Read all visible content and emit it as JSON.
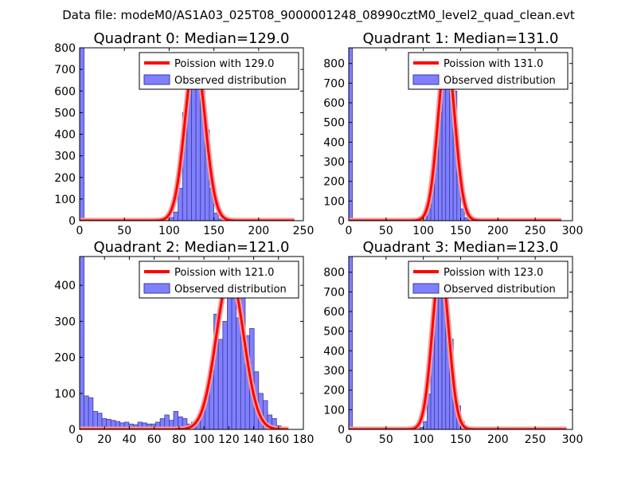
{
  "figure": {
    "suptitle": "Data file: modeM0/AS1A03_025T08_9000001248_08990cztM0_level2_quad_clean.evt"
  },
  "colors": {
    "bar_fill": "#8080ff",
    "bar_edge": "#3a3aa0",
    "curve": "#ff0000",
    "curve_glow": "#f2a0a0"
  },
  "chart_data": [
    {
      "type": "bar",
      "title": "Quadrant 0: Median=129.0",
      "xlim": [
        0,
        250
      ],
      "ylim": [
        0,
        800
      ],
      "xticks": [
        0,
        50,
        100,
        150,
        200,
        250
      ],
      "yticks": [
        0,
        100,
        200,
        300,
        400,
        500,
        600,
        700,
        800
      ],
      "bin_width": 5,
      "bins": [
        {
          "x": 0,
          "value": 800
        },
        {
          "x": 75,
          "value": 5
        },
        {
          "x": 80,
          "value": 5
        },
        {
          "x": 85,
          "value": 5
        },
        {
          "x": 90,
          "value": 8
        },
        {
          "x": 95,
          "value": 8
        },
        {
          "x": 100,
          "value": 15
        },
        {
          "x": 105,
          "value": 40
        },
        {
          "x": 110,
          "value": 150
        },
        {
          "x": 115,
          "value": 500
        },
        {
          "x": 120,
          "value": 620
        },
        {
          "x": 125,
          "value": 740
        },
        {
          "x": 130,
          "value": 690
        },
        {
          "x": 135,
          "value": 600
        },
        {
          "x": 140,
          "value": 420
        },
        {
          "x": 145,
          "value": 150
        },
        {
          "x": 150,
          "value": 35
        },
        {
          "x": 155,
          "value": 8
        }
      ],
      "curve": {
        "mean": 129.0,
        "peak": 760,
        "x_range": [
          0,
          240
        ],
        "label": "Poission with 129.0"
      },
      "hist_label": "Observed distribution"
    },
    {
      "type": "bar",
      "title": "Quadrant 1: Median=131.0",
      "xlim": [
        0,
        300
      ],
      "ylim": [
        0,
        880
      ],
      "xticks": [
        0,
        50,
        100,
        150,
        200,
        250,
        300
      ],
      "yticks": [
        0,
        100,
        200,
        300,
        400,
        500,
        600,
        700,
        800
      ],
      "bin_width": 5,
      "bins": [
        {
          "x": 0,
          "value": 880
        },
        {
          "x": 80,
          "value": 5
        },
        {
          "x": 85,
          "value": 5
        },
        {
          "x": 90,
          "value": 5
        },
        {
          "x": 95,
          "value": 10
        },
        {
          "x": 100,
          "value": 20
        },
        {
          "x": 105,
          "value": 60
        },
        {
          "x": 110,
          "value": 200
        },
        {
          "x": 115,
          "value": 440
        },
        {
          "x": 120,
          "value": 550
        },
        {
          "x": 125,
          "value": 830
        },
        {
          "x": 130,
          "value": 820
        },
        {
          "x": 135,
          "value": 680
        },
        {
          "x": 140,
          "value": 660
        },
        {
          "x": 145,
          "value": 250
        },
        {
          "x": 150,
          "value": 60
        },
        {
          "x": 155,
          "value": 15
        },
        {
          "x": 160,
          "value": 5
        }
      ],
      "curve": {
        "mean": 131.0,
        "peak": 845,
        "x_range": [
          0,
          285
        ],
        "label": "Poission with 131.0"
      },
      "hist_label": "Observed distribution"
    },
    {
      "type": "bar",
      "title": "Quadrant 2: Median=121.0",
      "xlim": [
        0,
        180
      ],
      "ylim": [
        0,
        480
      ],
      "xticks": [
        0,
        20,
        40,
        60,
        80,
        100,
        120,
        140,
        160,
        180
      ],
      "yticks": [
        0,
        100,
        200,
        300,
        400
      ],
      "bin_width": 3.6,
      "bins": [
        {
          "x": 0,
          "value": 480
        },
        {
          "x": 3.6,
          "value": 93
        },
        {
          "x": 7.2,
          "value": 88
        },
        {
          "x": 10.8,
          "value": 50
        },
        {
          "x": 14.4,
          "value": 45
        },
        {
          "x": 18,
          "value": 30
        },
        {
          "x": 21.6,
          "value": 28
        },
        {
          "x": 25.2,
          "value": 25
        },
        {
          "x": 28.8,
          "value": 22
        },
        {
          "x": 32.4,
          "value": 18
        },
        {
          "x": 36,
          "value": 20
        },
        {
          "x": 39.6,
          "value": 15
        },
        {
          "x": 43.2,
          "value": 13
        },
        {
          "x": 46.8,
          "value": 20
        },
        {
          "x": 50.4,
          "value": 18
        },
        {
          "x": 54,
          "value": 15
        },
        {
          "x": 57.6,
          "value": 15
        },
        {
          "x": 61.2,
          "value": 20
        },
        {
          "x": 64.8,
          "value": 30
        },
        {
          "x": 68.4,
          "value": 40
        },
        {
          "x": 72,
          "value": 25
        },
        {
          "x": 75.6,
          "value": 50
        },
        {
          "x": 79.2,
          "value": 35
        },
        {
          "x": 82.8,
          "value": 30
        },
        {
          "x": 86.4,
          "value": 15
        },
        {
          "x": 90,
          "value": 20
        },
        {
          "x": 93.6,
          "value": 25
        },
        {
          "x": 97.2,
          "value": 50
        },
        {
          "x": 100.8,
          "value": 100
        },
        {
          "x": 104.4,
          "value": 150
        },
        {
          "x": 108,
          "value": 320
        },
        {
          "x": 111.6,
          "value": 250
        },
        {
          "x": 115.2,
          "value": 300
        },
        {
          "x": 118.8,
          "value": 420
        },
        {
          "x": 122.4,
          "value": 390
        },
        {
          "x": 126,
          "value": 310
        },
        {
          "x": 129.6,
          "value": 370
        },
        {
          "x": 133.2,
          "value": 260
        },
        {
          "x": 136.8,
          "value": 280
        },
        {
          "x": 140.4,
          "value": 160
        },
        {
          "x": 144,
          "value": 100
        },
        {
          "x": 147.6,
          "value": 80
        },
        {
          "x": 151.2,
          "value": 40
        },
        {
          "x": 154.8,
          "value": 30
        },
        {
          "x": 158.4,
          "value": 10
        },
        {
          "x": 162,
          "value": 5
        }
      ],
      "curve": {
        "mean": 121.0,
        "peak": 430,
        "x_range": [
          0,
          168
        ],
        "label": "Poission with 121.0"
      },
      "hist_label": "Observed distribution"
    },
    {
      "type": "bar",
      "title": "Quadrant 3: Median=123.0",
      "xlim": [
        0,
        300
      ],
      "ylim": [
        0,
        880
      ],
      "xticks": [
        0,
        50,
        100,
        150,
        200,
        250,
        300
      ],
      "yticks": [
        0,
        100,
        200,
        300,
        400,
        500,
        600,
        700,
        800
      ],
      "bin_width": 5,
      "bins": [
        {
          "x": 0,
          "value": 880
        },
        {
          "x": 85,
          "value": 5
        },
        {
          "x": 90,
          "value": 5
        },
        {
          "x": 95,
          "value": 10
        },
        {
          "x": 100,
          "value": 40
        },
        {
          "x": 105,
          "value": 180
        },
        {
          "x": 110,
          "value": 450
        },
        {
          "x": 115,
          "value": 760
        },
        {
          "x": 120,
          "value": 820
        },
        {
          "x": 125,
          "value": 750
        },
        {
          "x": 130,
          "value": 500
        },
        {
          "x": 135,
          "value": 460
        },
        {
          "x": 140,
          "value": 200
        },
        {
          "x": 145,
          "value": 120
        },
        {
          "x": 150,
          "value": 40
        },
        {
          "x": 155,
          "value": 10
        },
        {
          "x": 160,
          "value": 5
        }
      ],
      "curve": {
        "mean": 123.0,
        "peak": 830,
        "x_range": [
          0,
          292
        ],
        "label": "Poission with 123.0"
      },
      "hist_label": "Observed distribution"
    }
  ]
}
